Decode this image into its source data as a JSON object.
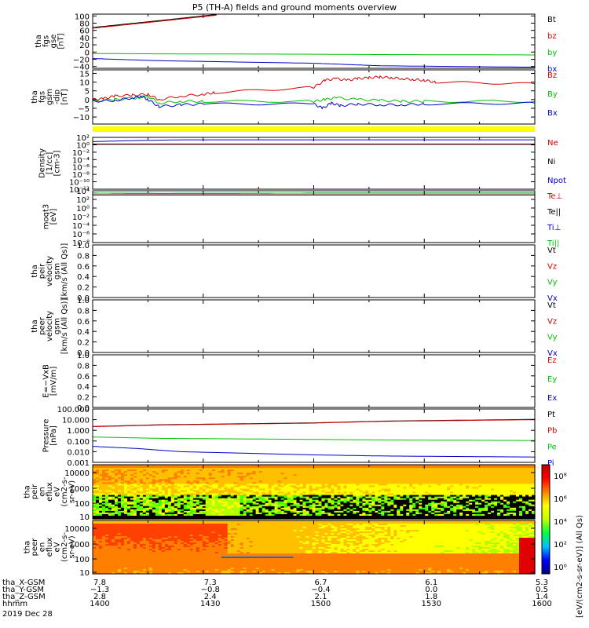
{
  "title": "P5 (TH-A) fields and ground moments overview",
  "colors": {
    "black": "#000000",
    "red": "#d00000",
    "green": "#00c000",
    "blue": "#0000c8",
    "yellow": "#ffff00"
  },
  "chart_data": [
    {
      "type": "line",
      "ylabel": [
        "tha",
        "fgs",
        "gse",
        "[nT]"
      ],
      "yticks": [
        "100",
        "80",
        "60",
        "40",
        "20",
        "0",
        "−20",
        "−40"
      ],
      "ylim": [
        -45,
        105
      ],
      "legend": [
        "Bt",
        "bz",
        "by",
        "bx"
      ],
      "series": [
        {
          "name": "Bt",
          "x": [
            1400,
            1430,
            1456
          ],
          "values": [
            68,
            87,
            104
          ]
        },
        {
          "name": "bz",
          "x": [
            1400,
            1430,
            1456
          ],
          "values": [
            66,
            85,
            102
          ]
        },
        {
          "name": "by",
          "x": [
            1400,
            1430,
            1500,
            1530,
            1600
          ],
          "values": [
            -4,
            -5,
            -6,
            -7,
            -8
          ]
        },
        {
          "name": "bx",
          "x": [
            1400,
            1430,
            1500,
            1530,
            1600
          ],
          "values": [
            -18,
            -24,
            -31,
            -38,
            -42
          ]
        }
      ]
    },
    {
      "type": "line",
      "ylabel": [
        "tha",
        "fgs",
        "gsm",
        "-dip",
        "[nT]"
      ],
      "yticks": [
        "15",
        "10",
        "5",
        "0",
        "−5",
        "−10"
      ],
      "ylim": [
        -14,
        17
      ],
      "legend": [
        "Bz",
        "By",
        "Bx"
      ],
      "series": [
        {
          "name": "Bz",
          "x": [
            1400,
            1405,
            1410,
            1418,
            1425,
            1430,
            1440,
            1450,
            1455,
            1500,
            1505,
            1510,
            1515,
            1520,
            1525,
            1530,
            1535,
            1540,
            1545,
            1550,
            1555,
            1600
          ],
          "values": [
            0,
            0.5,
            2,
            2.5,
            3,
            0,
            2,
            3,
            4,
            7,
            11,
            12,
            11,
            12,
            12.5,
            13,
            12.5,
            12,
            11.5,
            11,
            10,
            9
          ]
        },
        {
          "name": "By",
          "x": [
            1400,
            1410,
            1420,
            1425,
            1430,
            1440,
            1450,
            1500,
            1505,
            1510,
            1520,
            1530,
            1540,
            1550,
            1600
          ],
          "values": [
            -1,
            0,
            1,
            2,
            -2,
            -1,
            -1,
            -1,
            0,
            1,
            0,
            -0.5,
            -1,
            -1,
            -1
          ]
        },
        {
          "name": "Bx",
          "x": [
            1400,
            1410,
            1418,
            1422,
            1425,
            1430,
            1440,
            1450,
            1500,
            1504,
            1508,
            1512,
            1520,
            1530,
            1540,
            1550,
            1600
          ],
          "values": [
            -1,
            -0.5,
            1,
            2,
            0,
            -4,
            -3,
            -2.5,
            -2.5,
            -5,
            -2,
            -3.5,
            -2.5,
            -3,
            -3,
            -2.5,
            -2
          ]
        }
      ]
    },
    {
      "type": "line",
      "ylabel": [
        "Density",
        "[1/cc]",
        "[cm-3]"
      ],
      "yticks": [
        "10²",
        "10⁰",
        "10⁻²",
        "10⁻⁴",
        "10⁻⁶",
        "10⁻⁸",
        "10⁻¹⁰",
        "10⁻¹²"
      ],
      "ylim": [
        -12.6,
        2.2
      ],
      "log": true,
      "legend": [
        "Ne",
        "Ni",
        "Npot"
      ],
      "series": [
        {
          "name": "Ne",
          "x": [
            1400,
            1500,
            1600
          ],
          "values": [
            0.2,
            0.2,
            0.2
          ]
        },
        {
          "name": "Ni",
          "x": [
            1400,
            1500,
            1600
          ],
          "values": [
            0.3,
            0.3,
            0.3
          ]
        },
        {
          "name": "Npot",
          "x": [
            1400,
            1420,
            1440,
            1500,
            1600
          ],
          "values": [
            1.0,
            1.3,
            1.5,
            1.5,
            1.5
          ]
        }
      ]
    },
    {
      "type": "line",
      "ylabel": [
        "moqt3",
        "[eV]"
      ],
      "yticks": [
        "10⁴",
        "10²",
        "10⁰",
        "10⁻²",
        "10⁻⁴",
        "10⁻⁶",
        "10⁻⁸"
      ],
      "ylim": [
        -9,
        4.6
      ],
      "log": true,
      "legend": [
        "Te⊥",
        "Te||",
        "Ti⊥",
        "Ti||"
      ],
      "series": [
        {
          "name": "Te⊥",
          "x": [
            1400,
            1500,
            1600
          ],
          "values": [
            3.5,
            3.5,
            3.5
          ]
        },
        {
          "name": "Te||",
          "x": [
            1400,
            1500,
            1600
          ],
          "values": [
            3.5,
            3.5,
            3.5
          ]
        },
        {
          "name": "Ti⊥",
          "x": [
            1400,
            1430,
            1500,
            1600
          ],
          "values": [
            4.0,
            3.9,
            4.0,
            4.0
          ]
        },
        {
          "name": "Ti||",
          "x": [
            1400,
            1430,
            1500,
            1600
          ],
          "values": [
            4.0,
            3.9,
            4.0,
            4.0
          ]
        }
      ]
    },
    {
      "type": "line",
      "ylabel": [
        "tha",
        "peir",
        "velocity",
        "gsm",
        "[km/s (All Qs)]"
      ],
      "yticks": [
        "1.0",
        "0.8",
        "0.6",
        "0.4",
        "0.2",
        "0.0"
      ],
      "ylim": [
        0,
        1
      ],
      "legend": [
        "Vt",
        "Vz",
        "Vy",
        "Vx"
      ],
      "series": []
    },
    {
      "type": "line",
      "ylabel": [
        "tha",
        "peer",
        "velocity",
        "gsm",
        "[km/s (All Qs)]"
      ],
      "yticks": [
        "1.0",
        "0.8",
        "0.6",
        "0.4",
        "0.2",
        "0.0"
      ],
      "ylim": [
        0,
        1
      ],
      "legend": [
        "Vt",
        "Vz",
        "Vy",
        "Vx"
      ],
      "series": []
    },
    {
      "type": "line",
      "ylabel": [
        "E=−VxB",
        "[mV/m]"
      ],
      "yticks": [
        "1.0",
        "0.8",
        "0.6",
        "0.4",
        "0.2",
        "0.0"
      ],
      "ylim": [
        0,
        1
      ],
      "legend": [
        "Ez",
        "Ey",
        "Ex"
      ],
      "series": []
    },
    {
      "type": "line",
      "ylabel": [
        "Pressure",
        "[nPa]"
      ],
      "yticks": [
        "100.000",
        "10.000",
        "1.000",
        "0.100",
        "0.010",
        "0.001"
      ],
      "ylim": [
        -3,
        2
      ],
      "log": true,
      "legend": [
        "Pt",
        "Pb",
        "Pe",
        "Pi"
      ],
      "series": [
        {
          "name": "Pt",
          "x": [
            1400,
            1430,
            1500,
            1530,
            1600
          ],
          "values": [
            0.36,
            0.52,
            0.7,
            0.86,
            1.03
          ]
        },
        {
          "name": "Pb",
          "x": [
            1400,
            1430,
            1500,
            1530,
            1600
          ],
          "values": [
            0.34,
            0.5,
            0.68,
            0.84,
            1.0
          ]
        },
        {
          "name": "Pe",
          "x": [
            1400,
            1430,
            1500,
            1530,
            1600
          ],
          "values": [
            -0.62,
            -0.75,
            -0.85,
            -0.9,
            -0.95
          ]
        },
        {
          "name": "Pi",
          "x": [
            1400,
            1420,
            1440,
            1500,
            1530,
            1600
          ],
          "values": [
            -1.5,
            -1.7,
            -2.0,
            -2.3,
            -2.4,
            -2.5
          ]
        }
      ]
    },
    {
      "type": "heatmap",
      "ylabel": [
        "tha",
        "peir",
        "en",
        "eflux",
        "eV",
        "(cm2-s-",
        "sr-eV)"
      ],
      "yticks": [
        "10000",
        "1000",
        "100",
        "10"
      ]
    },
    {
      "type": "heatmap",
      "ylabel": [
        "tha",
        "peer",
        "en",
        "eflux",
        "eV",
        "(cm2-s-",
        "sr-eV)"
      ],
      "yticks": [
        "10000",
        "1000",
        "100",
        "10"
      ]
    }
  ],
  "colorbar": {
    "ticks": [
      "10⁸",
      "10⁶",
      "10⁴",
      "10²",
      "10⁰"
    ],
    "label": "[eV/(cm2-s-sr-eV)] (All Qs)"
  },
  "xaxis": {
    "row_labels": [
      "tha_X-GSM",
      "tha_Y-GSM",
      "tha_Z-GSM",
      "hhmm"
    ],
    "columns": [
      [
        "7.8",
        "−1.3",
        "2.8",
        "1400"
      ],
      [
        "7.3",
        "−0.8",
        "2.4",
        "1430"
      ],
      [
        "6.7",
        "−0.4",
        "2.1",
        "1500"
      ],
      [
        "6.1",
        "0.0",
        "1.8",
        "1530"
      ],
      [
        "5.3",
        "0.5",
        "1.4",
        "1600"
      ]
    ],
    "date": "2019 Dec 28",
    "xlim": [
      1400,
      1600
    ]
  }
}
